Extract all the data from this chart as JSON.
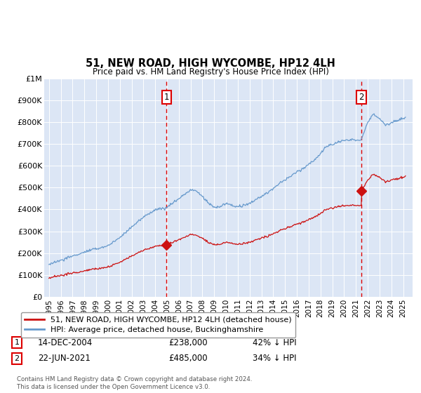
{
  "title": "51, NEW ROAD, HIGH WYCOMBE, HP12 4LH",
  "subtitle": "Price paid vs. HM Land Registry's House Price Index (HPI)",
  "red_line_label": "51, NEW ROAD, HIGH WYCOMBE, HP12 4LH (detached house)",
  "blue_line_label": "HPI: Average price, detached house, Buckinghamshire",
  "annotation1": {
    "label": "1",
    "date_str": "14-DEC-2004",
    "price": "£238,000",
    "pct": "42% ↓ HPI"
  },
  "annotation2": {
    "label": "2",
    "date_str": "22-JUN-2021",
    "price": "£485,000",
    "pct": "34% ↓ HPI"
  },
  "footnote": "Contains HM Land Registry data © Crown copyright and database right 2024.\nThis data is licensed under the Open Government Licence v3.0.",
  "ylim": [
    0,
    1000000
  ],
  "yticks": [
    0,
    100000,
    200000,
    300000,
    400000,
    500000,
    600000,
    700000,
    800000,
    900000,
    1000000
  ],
  "ytick_labels": [
    "£0",
    "£100K",
    "£200K",
    "£300K",
    "£400K",
    "£500K",
    "£600K",
    "£700K",
    "£800K",
    "£900K",
    "£1M"
  ],
  "hpi_color": "#6699cc",
  "price_color": "#cc1111",
  "vline_color": "#dd0000",
  "marker1_year": 2004.958,
  "marker2_year": 2021.472,
  "sale1_value": 238000,
  "sale2_value": 485000,
  "plot_bg_color": "#dce6f5"
}
